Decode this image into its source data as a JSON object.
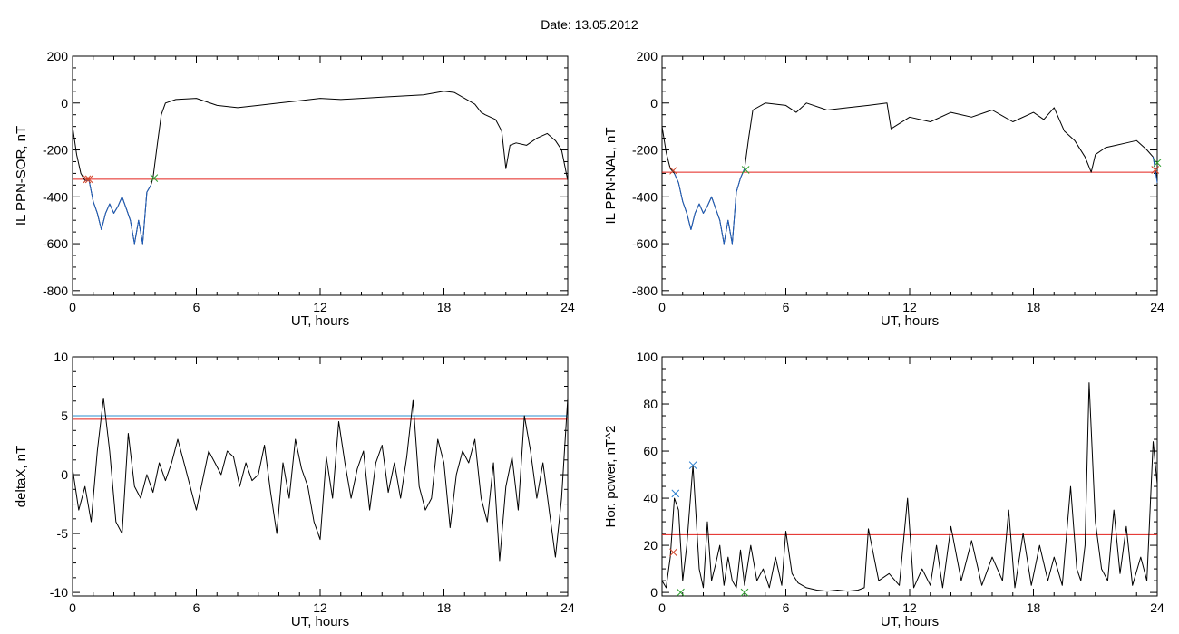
{
  "title": "Date:  13.05.2012",
  "colors": {
    "axes": "#000000",
    "trace": "#000000",
    "event": "#1f5fbf",
    "threshold": "#e3201b",
    "threshold2": "#2a8fd0",
    "start_marker": "#2ea02e",
    "end_marker": "#d0452a",
    "peak_marker": "#2a7fd0"
  },
  "chart_data": [
    {
      "type": "line",
      "panel": "top-left",
      "xlabel": "UT, hours",
      "ylabel": "IL PPN-SOR, nT",
      "xlim": [
        0,
        24
      ],
      "ylim": [
        -820,
        200
      ],
      "xticks": [
        0,
        6,
        12,
        18,
        24
      ],
      "yticks": [
        -800,
        -600,
        -400,
        -200,
        0,
        200
      ],
      "threshold": -325,
      "series": [
        {
          "role": "trace",
          "x": [
            0,
            0.2,
            0.4,
            0.6,
            0.8,
            1.0,
            1.2,
            1.4,
            1.6,
            1.8,
            2.0,
            2.2,
            2.4,
            2.6,
            2.8,
            3.0,
            3.2,
            3.4,
            3.6,
            3.8,
            3.9,
            4.1,
            4.3,
            4.5,
            5,
            6,
            7,
            8,
            9,
            10,
            11,
            12,
            13,
            14,
            15,
            16,
            17,
            18,
            18.5,
            19,
            19.5,
            19.8,
            20,
            20.5,
            20.8,
            21.0,
            21.2,
            21.5,
            22,
            22.5,
            23,
            23.4,
            23.7,
            24
          ],
          "y": [
            -100,
            -220,
            -300,
            -330,
            -330,
            -420,
            -470,
            -540,
            -470,
            -430,
            -470,
            -440,
            -400,
            -450,
            -500,
            -600,
            -500,
            -600,
            -380,
            -350,
            -320,
            -180,
            -50,
            0,
            15,
            20,
            -10,
            -20,
            -10,
            0,
            10,
            20,
            15,
            20,
            25,
            30,
            35,
            50,
            45,
            20,
            -5,
            -40,
            -50,
            -70,
            -120,
            -280,
            -180,
            -170,
            -180,
            -150,
            -130,
            -160,
            -200,
            -330
          ]
        },
        {
          "role": "event",
          "x": [
            0.6,
            0.8,
            1.0,
            1.2,
            1.4,
            1.6,
            1.8,
            2.0,
            2.2,
            2.4,
            2.6,
            2.8,
            3.0,
            3.2,
            3.4,
            3.6,
            3.8
          ],
          "y": [
            -330,
            -330,
            -420,
            -470,
            -540,
            -470,
            -430,
            -470,
            -440,
            -400,
            -450,
            -500,
            -600,
            -500,
            -600,
            -380,
            -350
          ]
        }
      ],
      "markers": [
        {
          "x": 0.7,
          "y": -325,
          "role": "end"
        },
        {
          "x": 0.8,
          "y": -325,
          "role": "end"
        },
        {
          "x": 3.95,
          "y": -320,
          "role": "start"
        }
      ]
    },
    {
      "type": "line",
      "panel": "top-right",
      "xlabel": "UT, hours",
      "ylabel": "IL PPN-NAL, nT",
      "xlim": [
        0,
        24
      ],
      "ylim": [
        -820,
        200
      ],
      "xticks": [
        0,
        6,
        12,
        18,
        24
      ],
      "yticks": [
        -800,
        -600,
        -400,
        -200,
        0,
        200
      ],
      "threshold": -295,
      "series": [
        {
          "role": "trace",
          "x": [
            0,
            0.2,
            0.4,
            0.6,
            0.8,
            1.0,
            1.2,
            1.4,
            1.6,
            1.8,
            2.0,
            2.2,
            2.4,
            2.6,
            2.8,
            3.0,
            3.2,
            3.4,
            3.6,
            3.8,
            4.0,
            4.2,
            4.4,
            5,
            6,
            6.5,
            7,
            8,
            9,
            10,
            10.9,
            11.1,
            12,
            13,
            14,
            15,
            16,
            17,
            18,
            18.5,
            19,
            19.5,
            20,
            20.5,
            20.8,
            21.0,
            21.5,
            22,
            22.5,
            23,
            23.5,
            23.8,
            24
          ],
          "y": [
            -100,
            -210,
            -280,
            -300,
            -340,
            -420,
            -470,
            -540,
            -470,
            -430,
            -470,
            -440,
            -400,
            -450,
            -500,
            -600,
            -500,
            -600,
            -380,
            -320,
            -280,
            -150,
            -30,
            0,
            -10,
            -40,
            0,
            -30,
            -20,
            -10,
            0,
            -110,
            -60,
            -80,
            -40,
            -60,
            -30,
            -80,
            -40,
            -70,
            -20,
            -120,
            -160,
            -230,
            -295,
            -220,
            -190,
            -180,
            -170,
            -160,
            -200,
            -230,
            -330
          ]
        },
        {
          "role": "event",
          "x": [
            0.6,
            0.8,
            1.0,
            1.2,
            1.4,
            1.6,
            1.8,
            2.0,
            2.2,
            2.4,
            2.6,
            2.8,
            3.0,
            3.2,
            3.4,
            3.6,
            3.8,
            4.0
          ],
          "y": [
            -300,
            -340,
            -420,
            -470,
            -540,
            -470,
            -430,
            -470,
            -440,
            -400,
            -450,
            -500,
            -600,
            -500,
            -600,
            -380,
            -320,
            -280
          ]
        },
        {
          "role": "event",
          "x": [
            23.8,
            24
          ],
          "y": [
            -230,
            -340
          ]
        }
      ],
      "markers": [
        {
          "x": 0.55,
          "y": -288,
          "role": "end"
        },
        {
          "x": 4.05,
          "y": -285,
          "role": "start"
        },
        {
          "x": 23.9,
          "y": -285,
          "role": "end"
        },
        {
          "x": 24,
          "y": -255,
          "role": "start"
        }
      ]
    },
    {
      "type": "line",
      "panel": "bottom-left",
      "xlabel": "UT, hours",
      "ylabel": "deltaX, nT",
      "xlim": [
        0,
        24
      ],
      "ylim": [
        -10.3,
        10
      ],
      "xticks": [
        0,
        6,
        12,
        18,
        24
      ],
      "yticks": [
        -10,
        -5,
        0,
        5,
        10
      ],
      "threshold": 4.7,
      "threshold2": 5.0,
      "series": [
        {
          "role": "trace",
          "x": [
            0,
            0.3,
            0.6,
            0.9,
            1.2,
            1.5,
            1.8,
            2.1,
            2.4,
            2.7,
            3.0,
            3.3,
            3.6,
            3.9,
            4.2,
            4.5,
            4.8,
            5.1,
            5.4,
            5.7,
            6.0,
            6.3,
            6.6,
            6.9,
            7.2,
            7.5,
            7.8,
            8.1,
            8.4,
            8.7,
            9.0,
            9.3,
            9.6,
            9.9,
            10.2,
            10.5,
            10.8,
            11.1,
            11.4,
            11.7,
            12.0,
            12.3,
            12.6,
            12.9,
            13.2,
            13.5,
            13.8,
            14.1,
            14.4,
            14.7,
            15.0,
            15.3,
            15.6,
            15.9,
            16.2,
            16.5,
            16.8,
            17.1,
            17.4,
            17.7,
            18.0,
            18.3,
            18.6,
            18.9,
            19.2,
            19.5,
            19.8,
            20.1,
            20.4,
            20.7,
            21.0,
            21.3,
            21.6,
            21.9,
            22.2,
            22.5,
            22.8,
            23.1,
            23.4,
            23.7,
            24
          ],
          "y": [
            0.5,
            -3,
            -1,
            -4,
            2,
            6.5,
            2,
            -4,
            -5,
            3.5,
            -1,
            -2,
            0,
            -1.5,
            1,
            -0.5,
            1,
            3,
            1,
            -1,
            -3,
            -0.5,
            2,
            1,
            0,
            2,
            1.5,
            -1,
            1,
            -0.5,
            0,
            2.5,
            -1.5,
            -5,
            1,
            -2,
            3,
            0.5,
            -1,
            -4,
            -5.5,
            1.5,
            -2,
            4.5,
            1,
            -2,
            0.5,
            2,
            -3,
            1,
            2.5,
            -1.5,
            1,
            -2,
            1.5,
            6.3,
            -1,
            -3,
            -2,
            3,
            1,
            -4.5,
            0,
            2,
            1,
            3,
            -2,
            -4,
            1,
            -7.3,
            -1,
            1.5,
            -3,
            5,
            2,
            -2,
            1,
            -3,
            -7,
            -2,
            6.5
          ]
        }
      ],
      "markers": []
    },
    {
      "type": "line",
      "panel": "bottom-right",
      "xlabel": "UT, hours",
      "ylabel": "Hor. power, nT^2",
      "xlim": [
        0,
        24
      ],
      "ylim": [
        -1.5,
        100
      ],
      "xticks": [
        0,
        6,
        12,
        18,
        24
      ],
      "yticks": [
        0,
        20,
        40,
        60,
        80,
        100
      ],
      "threshold": 24.5,
      "series": [
        {
          "role": "trace",
          "x": [
            0,
            0.2,
            0.4,
            0.6,
            0.8,
            1.0,
            1.2,
            1.5,
            1.8,
            2.0,
            2.2,
            2.4,
            2.6,
            2.8,
            3.0,
            3.2,
            3.4,
            3.6,
            3.8,
            4.0,
            4.3,
            4.6,
            4.9,
            5.2,
            5.5,
            5.8,
            6.0,
            6.3,
            6.6,
            7.0,
            7.5,
            8.0,
            8.5,
            9.0,
            9.5,
            9.8,
            10.0,
            10.5,
            11.0,
            11.5,
            11.9,
            12.2,
            12.6,
            13.0,
            13.3,
            13.6,
            14.0,
            14.5,
            15.0,
            15.5,
            16.0,
            16.5,
            16.8,
            17.1,
            17.5,
            17.9,
            18.3,
            18.7,
            19.0,
            19.4,
            19.8,
            20.1,
            20.3,
            20.5,
            20.7,
            21.0,
            21.3,
            21.6,
            21.9,
            22.2,
            22.5,
            22.8,
            23.2,
            23.5,
            23.8,
            24
          ],
          "y": [
            5,
            2,
            15,
            40,
            35,
            5,
            20,
            54,
            10,
            2,
            30,
            5,
            12,
            20,
            3,
            15,
            5,
            2,
            18,
            3,
            20,
            5,
            10,
            2,
            15,
            3,
            26,
            8,
            4,
            2,
            1,
            0.5,
            1,
            0.5,
            1,
            2,
            27,
            5,
            8,
            3,
            40,
            2,
            10,
            3,
            20,
            2,
            28,
            5,
            22,
            3,
            15,
            5,
            35,
            2,
            25,
            3,
            20,
            5,
            15,
            3,
            45,
            10,
            5,
            20,
            89,
            30,
            10,
            5,
            35,
            8,
            28,
            3,
            15,
            5,
            64,
            46
          ]
        }
      ],
      "markers": [
        {
          "x": 0.55,
          "y": 17,
          "role": "end"
        },
        {
          "x": 0.65,
          "y": 42,
          "role": "peak"
        },
        {
          "x": 1.5,
          "y": 54,
          "role": "peak"
        },
        {
          "x": 0.9,
          "y": 0,
          "role": "start"
        },
        {
          "x": 4.0,
          "y": 0,
          "role": "start"
        }
      ]
    }
  ]
}
